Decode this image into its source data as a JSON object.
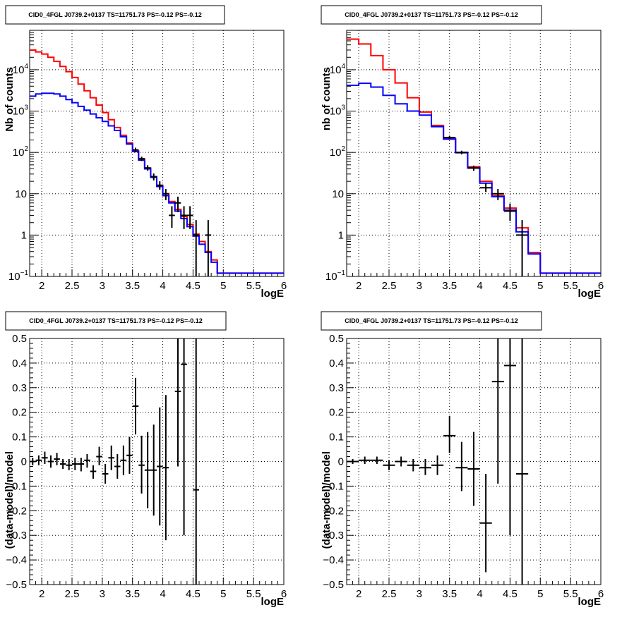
{
  "chart_data": [
    {
      "type": "line",
      "panel": "top-left",
      "title": "CID0_4FGL J0739.2+0137 TS=11751.73 PS=-0.12 PS=-0.12",
      "xlabel": "logE",
      "ylabel": "Nb of counts",
      "xlim": [
        1.8,
        6.0
      ],
      "ylim": [
        0.1,
        90000
      ],
      "yscale": "log",
      "grid": true,
      "x_ticks": [
        "2",
        "2.5",
        "3",
        "3.5",
        "4",
        "4.5",
        "5",
        "5.5",
        "6"
      ],
      "y_ticks": [
        {
          "v": 0.1,
          "base": "10",
          "exp": "−1"
        },
        {
          "v": 1,
          "base": "1",
          "exp": ""
        },
        {
          "v": 10,
          "base": "10",
          "exp": ""
        },
        {
          "v": 100,
          "base": "10",
          "exp": "2"
        },
        {
          "v": 1000,
          "base": "10",
          "exp": "3"
        },
        {
          "v": 10000,
          "base": "10",
          "exp": "4"
        }
      ],
      "series": [
        {
          "color": "#ff0000",
          "style": "step",
          "edges": [
            1.8,
            1.9,
            2.0,
            2.1,
            2.2,
            2.3,
            2.4,
            2.5,
            2.6,
            2.7,
            2.8,
            2.9,
            3.0,
            3.1,
            3.2,
            3.3,
            3.4,
            3.5,
            3.6,
            3.7,
            3.8,
            3.9,
            4.0,
            4.1,
            4.2,
            4.3,
            4.4,
            4.5,
            4.6,
            4.7,
            4.8,
            4.9,
            5.0,
            5.1,
            5.2,
            5.3,
            5.4,
            5.5,
            5.6,
            5.7,
            5.8,
            5.9,
            6.0
          ],
          "values": [
            30000,
            27000,
            24000,
            20000,
            16000,
            12000,
            9000,
            6500,
            4500,
            3100,
            2100,
            1400,
            920,
            620,
            400,
            260,
            170,
            110,
            70,
            42,
            26,
            16,
            10,
            6.5,
            4.2,
            2.8,
            1.8,
            1.05,
            0.7,
            0.4,
            0.25,
            0.12,
            0.12,
            0.12,
            0.12,
            0.12,
            0.12,
            0.12,
            0.12,
            0.12,
            0.12,
            0.12
          ]
        },
        {
          "color": "#0000ff",
          "style": "step",
          "edges": [
            1.8,
            1.9,
            2.0,
            2.1,
            2.2,
            2.3,
            2.4,
            2.5,
            2.6,
            2.7,
            2.8,
            2.9,
            3.0,
            3.1,
            3.2,
            3.3,
            3.4,
            3.5,
            3.6,
            3.7,
            3.8,
            3.9,
            4.0,
            4.1,
            4.2,
            4.3,
            4.4,
            4.5,
            4.6,
            4.7,
            4.8,
            4.9,
            5.0,
            5.1,
            5.2,
            5.3,
            5.4,
            5.5,
            5.6,
            5.7,
            5.8,
            5.9,
            6.0
          ],
          "values": [
            2300,
            2600,
            2700,
            2700,
            2600,
            2300,
            1900,
            1600,
            1300,
            1050,
            850,
            690,
            560,
            440,
            340,
            240,
            160,
            105,
            65,
            40,
            25,
            15,
            9,
            6,
            3.8,
            2.5,
            1.6,
            0.95,
            0.6,
            0.38,
            0.22,
            0.12,
            0.12,
            0.12,
            0.12,
            0.12,
            0.12,
            0.12,
            0.12,
            0.12,
            0.12,
            0.12
          ]
        }
      ],
      "points": [
        {
          "x": 3.55,
          "y": 115,
          "ylo": 100,
          "yhi": 130,
          "xerr": 0.05
        },
        {
          "x": 3.65,
          "y": 70,
          "ylo": 62,
          "yhi": 79,
          "xerr": 0.05
        },
        {
          "x": 3.75,
          "y": 42,
          "ylo": 36,
          "yhi": 49,
          "xerr": 0.05
        },
        {
          "x": 3.85,
          "y": 26,
          "ylo": 21,
          "yhi": 31,
          "xerr": 0.05
        },
        {
          "x": 3.95,
          "y": 16,
          "ylo": 12.5,
          "yhi": 20,
          "xerr": 0.05
        },
        {
          "x": 4.05,
          "y": 10,
          "ylo": 7,
          "yhi": 13,
          "xerr": 0.05
        },
        {
          "x": 4.15,
          "y": 3,
          "ylo": 1.5,
          "yhi": 5,
          "xerr": 0.05
        },
        {
          "x": 4.25,
          "y": 6,
          "ylo": 3.6,
          "yhi": 8.5,
          "xerr": 0.05
        },
        {
          "x": 4.35,
          "y": 3,
          "ylo": 1.4,
          "yhi": 5,
          "xerr": 0.05
        },
        {
          "x": 4.45,
          "y": 3,
          "ylo": 1.4,
          "yhi": 5,
          "xerr": 0.05
        },
        {
          "x": 4.55,
          "y": 1,
          "ylo": 0.1,
          "yhi": 2.3,
          "xerr": 0.05
        },
        {
          "x": 4.75,
          "y": 1,
          "ylo": 0.1,
          "yhi": 2.3,
          "xerr": 0.05
        }
      ]
    },
    {
      "type": "line",
      "panel": "top-right",
      "title": "CID0_4FGL J0739.2+0137 TS=11751.73 PS=-0.12 PS=-0.12",
      "xlabel": "logE",
      "ylabel": "nb of counts",
      "xlim": [
        1.8,
        6.0
      ],
      "ylim": [
        0.1,
        90000
      ],
      "yscale": "log",
      "grid": true,
      "x_ticks": [
        "2",
        "2.5",
        "3",
        "3.5",
        "4",
        "4.5",
        "5",
        "5.5",
        "6"
      ],
      "y_ticks": [
        {
          "v": 0.1,
          "base": "10",
          "exp": "−1"
        },
        {
          "v": 1,
          "base": "1",
          "exp": ""
        },
        {
          "v": 10,
          "base": "10",
          "exp": ""
        },
        {
          "v": 100,
          "base": "10",
          "exp": "2"
        },
        {
          "v": 1000,
          "base": "10",
          "exp": "3"
        },
        {
          "v": 10000,
          "base": "10",
          "exp": "4"
        }
      ],
      "series": [
        {
          "color": "#ff0000",
          "style": "step",
          "edges": [
            1.8,
            2.0,
            2.2,
            2.4,
            2.6,
            2.8,
            3.0,
            3.2,
            3.4,
            3.6,
            3.8,
            4.0,
            4.2,
            4.4,
            4.6,
            4.8,
            5.0,
            5.2,
            5.4,
            5.6,
            5.8,
            6.0
          ],
          "values": [
            55000,
            42000,
            22000,
            10000,
            4800,
            2100,
            950,
            450,
            215,
            100,
            45,
            20,
            9,
            4.5,
            1.5,
            0.38,
            0.12,
            0.12,
            0.12,
            0.12,
            0.12
          ]
        },
        {
          "color": "#0000ff",
          "style": "step",
          "edges": [
            1.8,
            2.0,
            2.2,
            2.4,
            2.6,
            2.8,
            3.0,
            3.2,
            3.4,
            3.6,
            3.8,
            4.0,
            4.2,
            4.4,
            4.6,
            4.8,
            5.0,
            5.2,
            5.4,
            5.6,
            5.8,
            6.0
          ],
          "values": [
            4200,
            4700,
            3800,
            2400,
            1500,
            1000,
            800,
            420,
            210,
            98,
            42,
            18,
            8.5,
            4,
            1.2,
            0.35,
            0.12,
            0.12,
            0.12,
            0.12,
            0.12
          ]
        }
      ],
      "points": [
        {
          "x": 3.5,
          "y": 230,
          "ylo": 210,
          "yhi": 250,
          "xerr": 0.1
        },
        {
          "x": 3.7,
          "y": 100,
          "ylo": 90,
          "yhi": 110,
          "xerr": 0.1
        },
        {
          "x": 3.9,
          "y": 42,
          "ylo": 36,
          "yhi": 48,
          "xerr": 0.1
        },
        {
          "x": 4.1,
          "y": 14,
          "ylo": 11,
          "yhi": 18,
          "xerr": 0.1
        },
        {
          "x": 4.3,
          "y": 10,
          "ylo": 7,
          "yhi": 13,
          "xerr": 0.1
        },
        {
          "x": 4.5,
          "y": 3.8,
          "ylo": 2.2,
          "yhi": 5.8,
          "xerr": 0.1
        },
        {
          "x": 4.7,
          "y": 1,
          "ylo": 0.1,
          "yhi": 2.3,
          "xerr": 0.1
        }
      ]
    },
    {
      "type": "scatter",
      "panel": "bottom-left",
      "title": "CID0_4FGL J0739.2+0137 TS=11751.73 PS=-0.12 PS=-0.12",
      "xlabel": "logE",
      "ylabel": "(data-model)/model",
      "xlim": [
        1.8,
        6.0
      ],
      "ylim": [
        -0.5,
        0.5
      ],
      "grid": true,
      "x_ticks": [
        "2",
        "2.5",
        "3",
        "3.5",
        "4",
        "4.5",
        "5",
        "5.5",
        "6"
      ],
      "y_ticks": [
        "−0.5",
        "−0.4",
        "−0.3",
        "−0.2",
        "−0.1",
        "0",
        "0.1",
        "0.2",
        "0.3",
        "0.4",
        "0.5"
      ],
      "points": [
        {
          "x": 1.85,
          "y": 0.0,
          "ylo": -0.015,
          "yhi": 0.015,
          "xerr": 0.05
        },
        {
          "x": 1.95,
          "y": 0.005,
          "ylo": -0.015,
          "yhi": 0.025,
          "xerr": 0.05
        },
        {
          "x": 2.05,
          "y": 0.015,
          "ylo": -0.01,
          "yhi": 0.04,
          "xerr": 0.05
        },
        {
          "x": 2.15,
          "y": 0.0,
          "ylo": -0.025,
          "yhi": 0.025,
          "xerr": 0.05
        },
        {
          "x": 2.25,
          "y": 0.01,
          "ylo": -0.015,
          "yhi": 0.035,
          "xerr": 0.05
        },
        {
          "x": 2.35,
          "y": -0.01,
          "ylo": -0.03,
          "yhi": 0.01,
          "xerr": 0.05
        },
        {
          "x": 2.45,
          "y": -0.015,
          "ylo": -0.035,
          "yhi": 0.01,
          "xerr": 0.05
        },
        {
          "x": 2.55,
          "y": -0.01,
          "ylo": -0.035,
          "yhi": 0.015,
          "xerr": 0.05
        },
        {
          "x": 2.65,
          "y": -0.01,
          "ylo": -0.04,
          "yhi": 0.015,
          "xerr": 0.05
        },
        {
          "x": 2.75,
          "y": 0.005,
          "ylo": -0.025,
          "yhi": 0.03,
          "xerr": 0.05
        },
        {
          "x": 2.85,
          "y": -0.04,
          "ylo": -0.07,
          "yhi": -0.015,
          "xerr": 0.05
        },
        {
          "x": 2.95,
          "y": 0.02,
          "ylo": -0.015,
          "yhi": 0.06,
          "xerr": 0.05
        },
        {
          "x": 3.05,
          "y": -0.05,
          "ylo": -0.09,
          "yhi": -0.01,
          "xerr": 0.05
        },
        {
          "x": 3.15,
          "y": 0.015,
          "ylo": -0.035,
          "yhi": 0.065,
          "xerr": 0.05
        },
        {
          "x": 3.25,
          "y": -0.02,
          "ylo": -0.07,
          "yhi": 0.03,
          "xerr": 0.05
        },
        {
          "x": 3.35,
          "y": 0.005,
          "ylo": -0.055,
          "yhi": 0.065,
          "xerr": 0.05
        },
        {
          "x": 3.45,
          "y": 0.025,
          "ylo": -0.05,
          "yhi": 0.1,
          "xerr": 0.05
        },
        {
          "x": 3.55,
          "y": 0.225,
          "ylo": 0.11,
          "yhi": 0.34,
          "xerr": 0.05
        },
        {
          "x": 3.65,
          "y": -0.015,
          "ylo": -0.13,
          "yhi": 0.105,
          "xerr": 0.05
        },
        {
          "x": 3.75,
          "y": -0.035,
          "ylo": -0.19,
          "yhi": 0.12,
          "xerr": 0.05
        },
        {
          "x": 3.85,
          "y": -0.035,
          "ylo": -0.22,
          "yhi": 0.15,
          "xerr": 0.05
        },
        {
          "x": 3.95,
          "y": -0.02,
          "ylo": -0.26,
          "yhi": 0.22,
          "xerr": 0.05
        },
        {
          "x": 4.05,
          "y": -0.025,
          "ylo": -0.32,
          "yhi": 0.27,
          "xerr": 0.05
        },
        {
          "x": 4.25,
          "y": 0.285,
          "ylo": -0.02,
          "yhi": 0.5,
          "xerr": 0.05
        },
        {
          "x": 4.35,
          "y": 0.395,
          "ylo": -0.3,
          "yhi": 0.5,
          "xerr": 0.05
        },
        {
          "x": 4.55,
          "y": -0.115,
          "ylo": -0.5,
          "yhi": 0.5,
          "xerr": 0.05
        }
      ]
    },
    {
      "type": "scatter",
      "panel": "bottom-right",
      "title": "CID0_4FGL J0739.2+0137 TS=11751.73 PS=-0.12 PS=-0.12",
      "xlabel": "logE",
      "ylabel": "(data-model)/model",
      "xlim": [
        1.8,
        6.0
      ],
      "ylim": [
        -0.5,
        0.5
      ],
      "grid": true,
      "x_ticks": [
        "2",
        "2.5",
        "3",
        "3.5",
        "4",
        "4.5",
        "5",
        "5.5",
        "6"
      ],
      "y_ticks": [
        "−0.5",
        "−0.4",
        "−0.3",
        "−0.2",
        "−0.1",
        "0",
        "0.1",
        "0.2",
        "0.3",
        "0.4",
        "0.5"
      ],
      "points": [
        {
          "x": 1.9,
          "y": 0.0,
          "ylo": -0.01,
          "yhi": 0.01,
          "xerr": 0.1
        },
        {
          "x": 2.1,
          "y": 0.005,
          "ylo": -0.01,
          "yhi": 0.02,
          "xerr": 0.1
        },
        {
          "x": 2.3,
          "y": 0.005,
          "ylo": -0.01,
          "yhi": 0.02,
          "xerr": 0.1
        },
        {
          "x": 2.5,
          "y": -0.015,
          "ylo": -0.035,
          "yhi": 0.005,
          "xerr": 0.1
        },
        {
          "x": 2.7,
          "y": 0.0,
          "ylo": -0.02,
          "yhi": 0.02,
          "xerr": 0.1
        },
        {
          "x": 2.9,
          "y": -0.015,
          "ylo": -0.04,
          "yhi": 0.01,
          "xerr": 0.1
        },
        {
          "x": 3.1,
          "y": -0.025,
          "ylo": -0.055,
          "yhi": 0.01,
          "xerr": 0.1
        },
        {
          "x": 3.3,
          "y": -0.015,
          "ylo": -0.055,
          "yhi": 0.025,
          "xerr": 0.1
        },
        {
          "x": 3.5,
          "y": 0.105,
          "ylo": 0.035,
          "yhi": 0.185,
          "xerr": 0.1
        },
        {
          "x": 3.7,
          "y": -0.025,
          "ylo": -0.12,
          "yhi": 0.08,
          "xerr": 0.1
        },
        {
          "x": 3.9,
          "y": -0.03,
          "ylo": -0.18,
          "yhi": 0.12,
          "xerr": 0.1
        },
        {
          "x": 4.1,
          "y": -0.25,
          "ylo": -0.45,
          "yhi": -0.05,
          "xerr": 0.1
        },
        {
          "x": 4.3,
          "y": 0.325,
          "ylo": -0.09,
          "yhi": 0.5,
          "xerr": 0.1
        },
        {
          "x": 4.5,
          "y": 0.39,
          "ylo": -0.3,
          "yhi": 0.5,
          "xerr": 0.1
        },
        {
          "x": 4.7,
          "y": -0.05,
          "ylo": -0.5,
          "yhi": 0.5,
          "xerr": 0.1
        }
      ]
    }
  ]
}
